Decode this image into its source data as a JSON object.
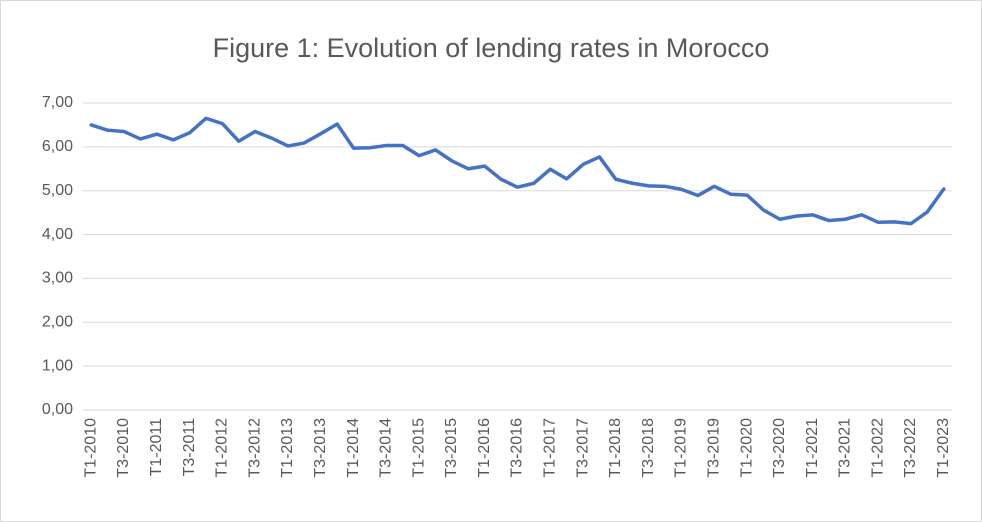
{
  "chart_data": {
    "type": "line",
    "title": "Figure 1: Evolution of lending rates in Morocco",
    "categories": [
      "T1-2010",
      null,
      "T3-2010",
      null,
      "T1-2011",
      null,
      "T3-2011",
      null,
      "T1-2012",
      null,
      "T3-2012",
      null,
      "T1-2013",
      null,
      "T3-2013",
      null,
      "T1-2014",
      null,
      "T3-2014",
      null,
      "T1-2015",
      null,
      "T3-2015",
      null,
      "T1-2016",
      null,
      "T3-2016",
      null,
      "T1-2017",
      null,
      "T3-2017",
      null,
      "T1-2018",
      null,
      "T3-2018",
      null,
      "T1-2019",
      null,
      "T3-2019",
      null,
      "T1-2020",
      null,
      "T3-2020",
      null,
      "T1-2021",
      null,
      "T3-2021",
      null,
      "T1-2022",
      null,
      "T3-2022",
      null,
      "T1-2023"
    ],
    "values": [
      6.5,
      6.38,
      6.35,
      6.18,
      6.29,
      6.16,
      6.32,
      6.65,
      6.53,
      6.13,
      6.35,
      6.2,
      6.02,
      6.09,
      6.3,
      6.52,
      5.97,
      5.98,
      6.03,
      6.03,
      5.8,
      5.93,
      5.68,
      5.5,
      5.56,
      5.26,
      5.08,
      5.17,
      5.49,
      5.27,
      5.6,
      5.77,
      5.26,
      5.17,
      5.11,
      5.1,
      5.03,
      4.89,
      5.1,
      4.92,
      4.9,
      4.56,
      4.35,
      4.42,
      4.45,
      4.32,
      4.35,
      4.45,
      4.28,
      4.29,
      4.25,
      4.52,
      5.04
    ],
    "color": "#4472c4",
    "ylim": [
      0,
      7
    ],
    "yticks": [
      {
        "value": 0,
        "label": "0,00"
      },
      {
        "value": 1,
        "label": "1,00"
      },
      {
        "value": 2,
        "label": "2,00"
      },
      {
        "value": 3,
        "label": "3,00"
      },
      {
        "value": 4,
        "label": "4,00"
      },
      {
        "value": 5,
        "label": "5,00"
      },
      {
        "value": 6,
        "label": "6,00"
      },
      {
        "value": 7,
        "label": "7,00"
      }
    ],
    "grid": true
  }
}
